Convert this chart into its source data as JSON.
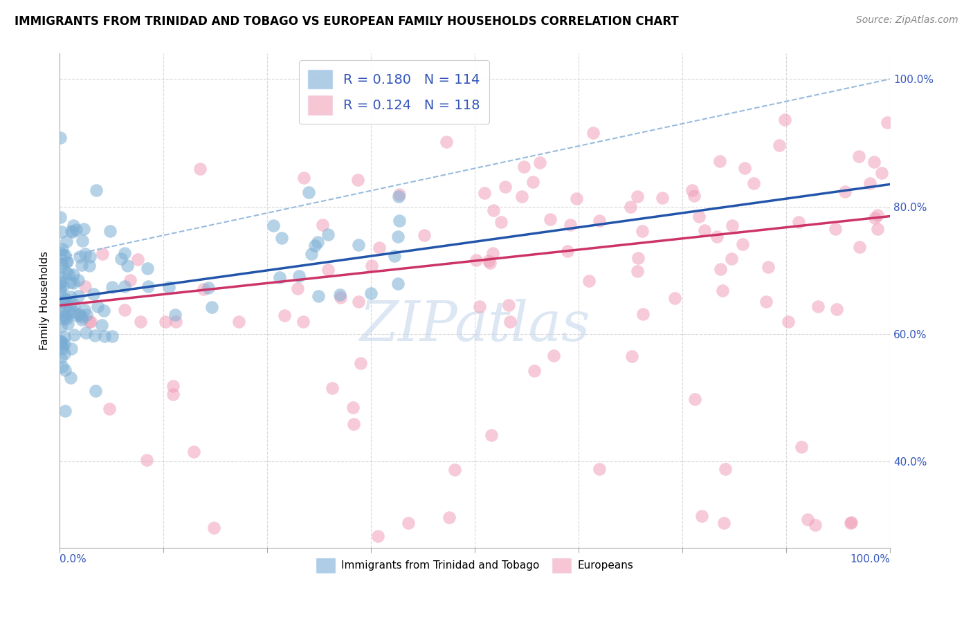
{
  "title": "IMMIGRANTS FROM TRINIDAD AND TOBAGO VS EUROPEAN FAMILY HOUSEHOLDS CORRELATION CHART",
  "source": "Source: ZipAtlas.com",
  "ylabel": "Family Households",
  "ytick_labels": [
    "40.0%",
    "60.0%",
    "80.0%",
    "100.0%"
  ],
  "ytick_values": [
    0.4,
    0.6,
    0.8,
    1.0
  ],
  "blue_scatter_color": "#7aadd4",
  "pink_scatter_color": "#f0a0b8",
  "blue_line_color": "#2255aa",
  "pink_line_color": "#cc3366",
  "dashed_line_color": "#99bbdd",
  "watermark_text": "ZIPatlas",
  "watermark_color": "#c5d8ec",
  "R_blue": 0.18,
  "N_blue": 114,
  "R_pink": 0.124,
  "N_pink": 118,
  "blue_line_x0": 0.0,
  "blue_line_y0": 0.655,
  "blue_line_x1": 1.0,
  "blue_line_y1": 0.835,
  "pink_line_x0": 0.0,
  "pink_line_y0": 0.645,
  "pink_line_x1": 1.0,
  "pink_line_y1": 0.785,
  "dash_line_x0": 0.0,
  "dash_line_y0": 0.72,
  "dash_line_x1": 1.0,
  "dash_line_y1": 1.0,
  "xmin": 0.0,
  "xmax": 1.0,
  "ymin": 0.265,
  "ymax": 1.04
}
